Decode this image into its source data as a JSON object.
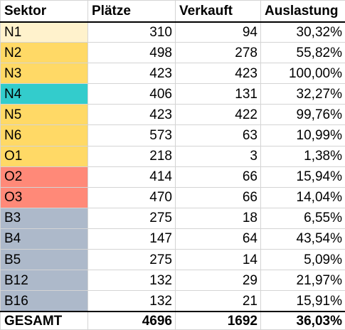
{
  "headers": [
    "Sektor",
    "Plätze",
    "Verkauft",
    "Auslastung"
  ],
  "rows": [
    {
      "sektor": "N1",
      "plaetze": "310",
      "verkauft": "94",
      "auslastung": "30,32%",
      "color": "#FFF2CC"
    },
    {
      "sektor": "N2",
      "plaetze": "498",
      "verkauft": "278",
      "auslastung": "55,82%",
      "color": "#FFD966"
    },
    {
      "sektor": "N3",
      "plaetze": "423",
      "verkauft": "423",
      "auslastung": "100,00%",
      "color": "#FFD966"
    },
    {
      "sektor": "N4",
      "plaetze": "406",
      "verkauft": "131",
      "auslastung": "32,27%",
      "color": "#33CCCC"
    },
    {
      "sektor": "N5",
      "plaetze": "423",
      "verkauft": "422",
      "auslastung": "99,76%",
      "color": "#FFD966"
    },
    {
      "sektor": "N6",
      "plaetze": "573",
      "verkauft": "63",
      "auslastung": "10,99%",
      "color": "#FFD966"
    },
    {
      "sektor": "O1",
      "plaetze": "218",
      "verkauft": "3",
      "auslastung": "1,38%",
      "color": "#FFD966"
    },
    {
      "sektor": "O2",
      "plaetze": "414",
      "verkauft": "66",
      "auslastung": "15,94%",
      "color": "#FF8978"
    },
    {
      "sektor": "O3",
      "plaetze": "470",
      "verkauft": "66",
      "auslastung": "14,04%",
      "color": "#FF8978"
    },
    {
      "sektor": "B3",
      "plaetze": "275",
      "verkauft": "18",
      "auslastung": "6,55%",
      "color": "#ADB9CA"
    },
    {
      "sektor": "B4",
      "plaetze": "147",
      "verkauft": "64",
      "auslastung": "43,54%",
      "color": "#ADB9CA"
    },
    {
      "sektor": "B5",
      "plaetze": "275",
      "verkauft": "14",
      "auslastung": "5,09%",
      "color": "#ADB9CA"
    },
    {
      "sektor": "B12",
      "plaetze": "132",
      "verkauft": "29",
      "auslastung": "21,97%",
      "color": "#ADB9CA"
    },
    {
      "sektor": "B16",
      "plaetze": "132",
      "verkauft": "21",
      "auslastung": "15,91%",
      "color": "#ADB9CA"
    }
  ],
  "total": {
    "sektor": "GESAMT",
    "plaetze": "4696",
    "verkauft": "1692",
    "auslastung": "36,03%"
  }
}
